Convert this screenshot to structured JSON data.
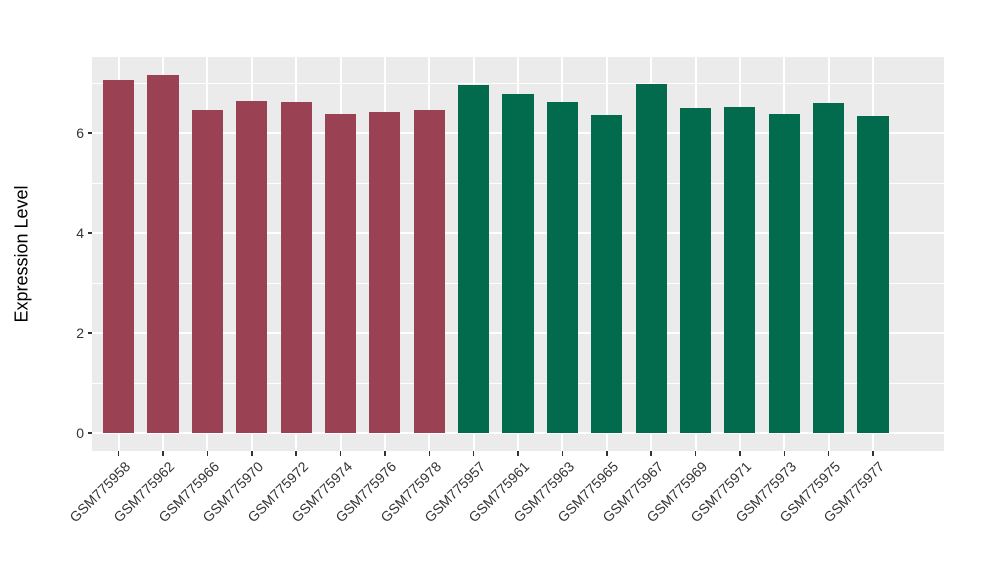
{
  "chart_data": {
    "type": "bar",
    "ylabel": "Expression Level",
    "categories": [
      "GSM775958",
      "GSM775962",
      "GSM775966",
      "GSM775970",
      "GSM775972",
      "GSM775974",
      "GSM775976",
      "GSM775978",
      "GSM775957",
      "GSM775961",
      "GSM775963",
      "GSM775965",
      "GSM775967",
      "GSM775969",
      "GSM775971",
      "GSM775973",
      "GSM775975",
      "GSM775977"
    ],
    "values": [
      7.07,
      7.16,
      6.47,
      6.65,
      6.63,
      6.39,
      6.42,
      6.47,
      6.97,
      6.78,
      6.62,
      6.36,
      6.99,
      6.5,
      6.53,
      6.39,
      6.61,
      6.34
    ],
    "group_index": [
      0,
      0,
      0,
      0,
      0,
      0,
      0,
      0,
      1,
      1,
      1,
      1,
      1,
      1,
      1,
      1,
      1,
      1
    ],
    "group_colors": [
      "#9A4254",
      "#026A4D"
    ],
    "yticks": [
      "0",
      "2",
      "4",
      "6"
    ],
    "ytick_values": [
      0,
      2,
      4,
      6
    ],
    "yminor_values": [
      1,
      3,
      5,
      7
    ],
    "ylim": [
      -0.36,
      7.52
    ],
    "grid": true,
    "legend": "none",
    "colors": {
      "panel_background": "#EBEBEB",
      "gridline": "#FFFFFF",
      "tick_label": "#333333",
      "axis_title": "#000000",
      "tick_mark": "#333333"
    }
  }
}
